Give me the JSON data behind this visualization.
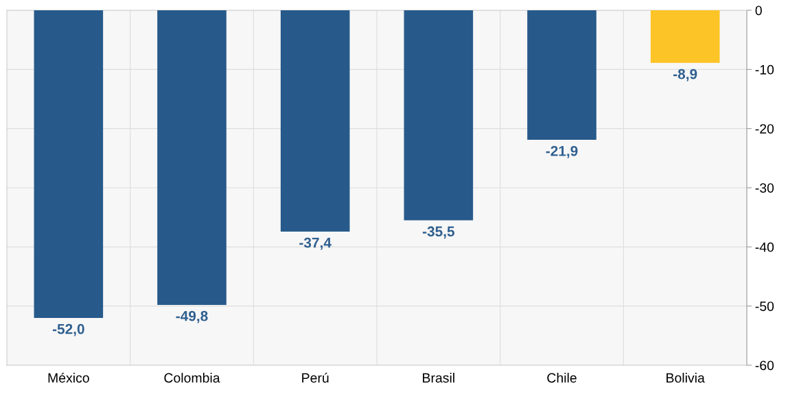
{
  "chart_data": {
    "type": "bar",
    "categories": [
      "México",
      "Colombia",
      "Perú",
      "Brasil",
      "Chile",
      "Bolivia"
    ],
    "values": [
      -52.0,
      -49.8,
      -37.4,
      -35.5,
      -21.9,
      -8.9
    ],
    "colors": [
      "#275a8a",
      "#275a8a",
      "#275a8a",
      "#275a8a",
      "#275a8a",
      "#fdc427"
    ],
    "value_labels": [
      "-52,0",
      "-49,8",
      "-37,4",
      "-35,5",
      "-21,9",
      "-8,9"
    ],
    "ylim": [
      -60,
      0
    ],
    "yticks": [
      -60,
      -50,
      -40,
      -30,
      -20,
      -10,
      0
    ],
    "grid": true
  }
}
